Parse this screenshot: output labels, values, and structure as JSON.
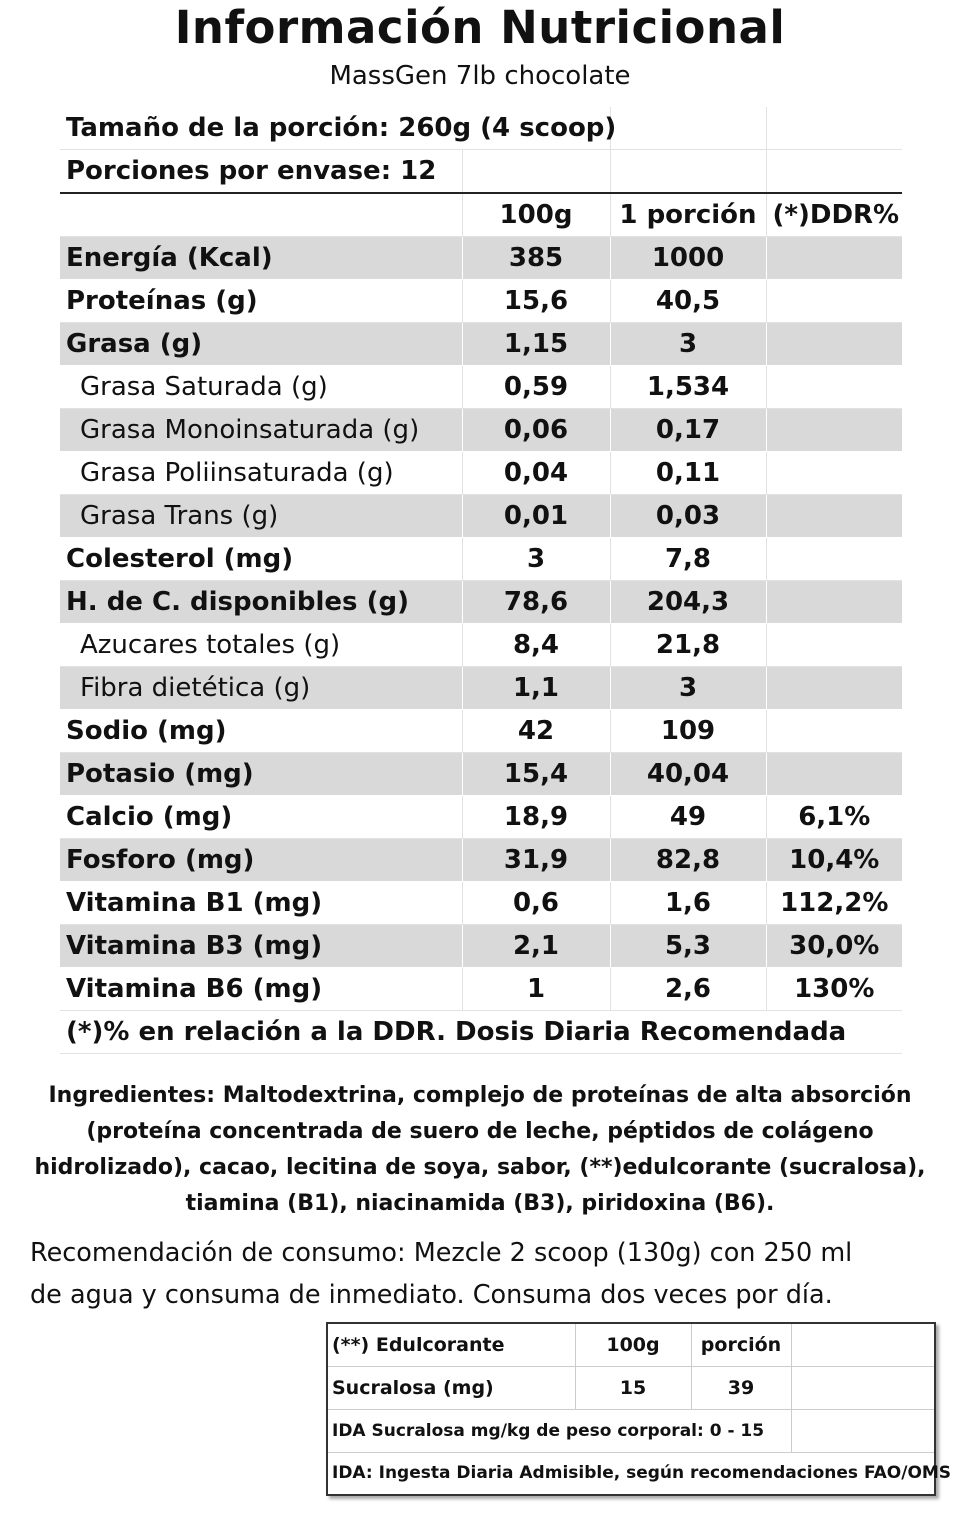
{
  "title": "Información Nutricional",
  "subtitle": "MassGen 7lb chocolate",
  "serving_size": "Tamaño de la porción: 260g (4 scoop)",
  "servings_per_container": "Porciones por envase: 12",
  "column_headers": [
    "100g",
    "1 porción",
    "(*)DDR%"
  ],
  "nutrients": [
    {
      "label": "Energía (Kcal)",
      "per100": "385",
      "portion": "1000",
      "ddr": "",
      "sub": false
    },
    {
      "label": "Proteínas (g)",
      "per100": "15,6",
      "portion": "40,5",
      "ddr": "",
      "sub": false
    },
    {
      "label": "Grasa (g)",
      "per100": "1,15",
      "portion": "3",
      "ddr": "",
      "sub": false
    },
    {
      "label": "Grasa Saturada (g)",
      "per100": "0,59",
      "portion": "1,534",
      "ddr": "",
      "sub": true
    },
    {
      "label": "Grasa Monoinsaturada (g)",
      "per100": "0,06",
      "portion": "0,17",
      "ddr": "",
      "sub": true
    },
    {
      "label": "Grasa Poliinsaturada (g)",
      "per100": "0,04",
      "portion": "0,11",
      "ddr": "",
      "sub": true
    },
    {
      "label": "Grasa Trans (g)",
      "per100": "0,01",
      "portion": "0,03",
      "ddr": "",
      "sub": true
    },
    {
      "label": "Colesterol (mg)",
      "per100": "3",
      "portion": "7,8",
      "ddr": "",
      "sub": false
    },
    {
      "label": "H. de C. disponibles (g)",
      "per100": "78,6",
      "portion": "204,3",
      "ddr": "",
      "sub": false
    },
    {
      "label": "Azucares totales (g)",
      "per100": "8,4",
      "portion": "21,8",
      "ddr": "",
      "sub": true
    },
    {
      "label": "Fibra dietética (g)",
      "per100": "1,1",
      "portion": "3",
      "ddr": "",
      "sub": true
    },
    {
      "label": "Sodio (mg)",
      "per100": "42",
      "portion": "109",
      "ddr": "",
      "sub": false
    },
    {
      "label": "Potasio (mg)",
      "per100": "15,4",
      "portion": "40,04",
      "ddr": "",
      "sub": false
    },
    {
      "label": "Calcio (mg)",
      "per100": "18,9",
      "portion": "49",
      "ddr": "6,1%",
      "sub": false
    },
    {
      "label": "Fosforo (mg)",
      "per100": "31,9",
      "portion": "82,8",
      "ddr": "10,4%",
      "sub": false
    },
    {
      "label": "Vitamina B1 (mg)",
      "per100": "0,6",
      "portion": "1,6",
      "ddr": "112,2%",
      "sub": false
    },
    {
      "label": "Vitamina B3 (mg)",
      "per100": "2,1",
      "portion": "5,3",
      "ddr": "30,0%",
      "sub": false
    },
    {
      "label": "Vitamina B6 (mg)",
      "per100": "1",
      "portion": "2,6",
      "ddr": "130%",
      "sub": false
    }
  ],
  "footnote": "(*)% en relación a la DDR. Dosis Diaria Recomendada",
  "ingredients_lines": [
    "Ingredientes: Maltodextrina, complejo de proteínas de alta absorción",
    "(proteína concentrada de suero de leche,  péptidos de colágeno",
    "hidrolizado), cacao, lecitina de soya, sabor, (**)edulcorante (sucralosa),",
    "tiamina (B1), niacinamida (B3), piridoxina (B6)."
  ],
  "recommendation_lines": [
    "Recomendación de consumo:  Mezcle 2 scoop (130g) con 250 ml",
    "de agua y consuma de inmediato. Consuma dos veces por día."
  ],
  "sweetener_table": {
    "header": [
      "(**) Edulcorante",
      "100g",
      "porción"
    ],
    "row": [
      "Sucralosa (mg)",
      "15",
      "39"
    ],
    "ida_range": "IDA Sucralosa mg/kg de peso corporal: 0 - 15",
    "ida_note": "IDA: Ingesta Diaria Admisible, según  recomendaciones FAO/OMS"
  }
}
